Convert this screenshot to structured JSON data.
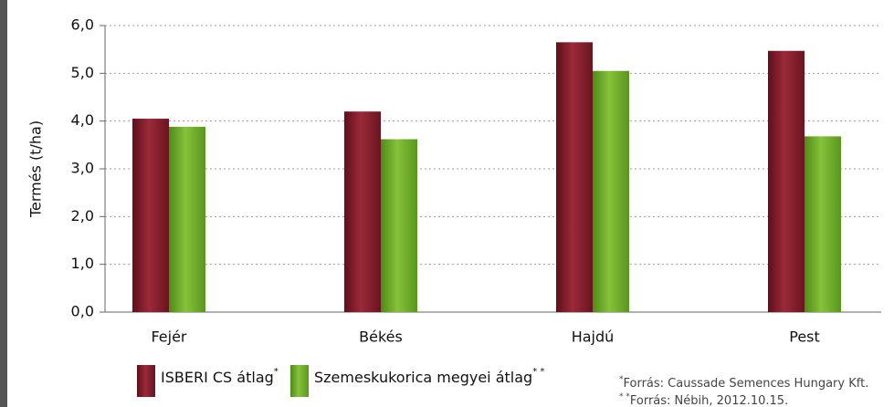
{
  "chart_data": {
    "type": "bar",
    "y_label": "Termés (t/ha)",
    "categories": [
      "Fejér",
      "Békés",
      "Hajdú",
      "Pest"
    ],
    "series": [
      {
        "name": "ISBERI CS átlag",
        "note": "*",
        "color": "#8c1f2e",
        "values": [
          4.05,
          4.2,
          5.65,
          5.47
        ]
      },
      {
        "name": "Szemeskukorica megyei átlag",
        "note": "* *",
        "color": "#78b22c",
        "values": [
          3.88,
          3.62,
          5.05,
          3.68
        ]
      }
    ],
    "ylim": [
      0,
      6
    ],
    "yticks": [
      {
        "value": 0,
        "label": "0,0"
      },
      {
        "value": 1,
        "label": "1,0"
      },
      {
        "value": 2,
        "label": "2,0"
      },
      {
        "value": 3,
        "label": "3,0"
      },
      {
        "value": 4,
        "label": "4,0"
      },
      {
        "value": 5,
        "label": "5,0"
      },
      {
        "value": 6,
        "label": "6,0"
      }
    ],
    "grid": true,
    "footnotes": [
      {
        "mark": "*",
        "text": "Forrás:  Caussade Semences Hungary Kft."
      },
      {
        "mark": "* *",
        "text": "Forrás:  Nébih, 2012.10.15."
      }
    ]
  }
}
